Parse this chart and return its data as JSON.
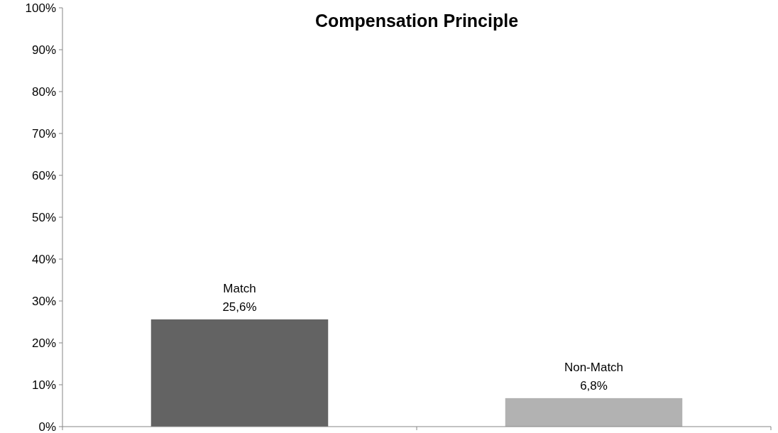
{
  "chart_data": {
    "type": "bar",
    "title": "Compensation Principle",
    "categories": [
      "Match",
      "Non-Match"
    ],
    "values": [
      25.6,
      6.8
    ],
    "colors": [
      "#636363",
      "#b2b2b2"
    ],
    "value_labels": [
      "25,6%",
      "6,8%"
    ],
    "ylim": [
      0,
      100
    ],
    "yticks": [
      {
        "value": 0,
        "label": "0%"
      },
      {
        "value": 10,
        "label": "10%"
      },
      {
        "value": 20,
        "label": "20%"
      },
      {
        "value": 30,
        "label": "30%"
      },
      {
        "value": 40,
        "label": "40%"
      },
      {
        "value": 50,
        "label": "50%"
      },
      {
        "value": 60,
        "label": "60%"
      },
      {
        "value": 70,
        "label": "70%"
      },
      {
        "value": 80,
        "label": "80%"
      },
      {
        "value": 90,
        "label": "90%"
      },
      {
        "value": 100,
        "label": "100%"
      }
    ],
    "grid": false,
    "tick_labels": "y"
  }
}
